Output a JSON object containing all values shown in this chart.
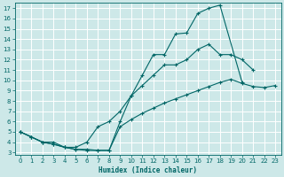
{
  "xlabel": "Humidex (Indice chaleur)",
  "xlim": [
    -0.5,
    23.5
  ],
  "ylim": [
    2.8,
    17.5
  ],
  "xticks": [
    0,
    1,
    2,
    3,
    4,
    5,
    6,
    7,
    8,
    9,
    10,
    11,
    12,
    13,
    14,
    15,
    16,
    17,
    18,
    19,
    20,
    21,
    22,
    23
  ],
  "yticks": [
    3,
    4,
    5,
    6,
    7,
    8,
    9,
    10,
    11,
    12,
    13,
    14,
    15,
    16,
    17
  ],
  "bg_color": "#cde8e8",
  "grid_color": "#ffffff",
  "line_color": "#006666",
  "line1_x": [
    0,
    1,
    2,
    3,
    4,
    5,
    6,
    7,
    8,
    9,
    10,
    11,
    12,
    13,
    14,
    15,
    16,
    17,
    18,
    20
  ],
  "line1_y": [
    5.0,
    4.5,
    4.0,
    4.0,
    3.5,
    3.3,
    3.3,
    3.2,
    3.2,
    6.0,
    8.5,
    10.5,
    12.5,
    12.5,
    14.5,
    14.6,
    16.5,
    17.0,
    17.3,
    9.8
  ],
  "line2_x": [
    0,
    1,
    2,
    3,
    4,
    5,
    6,
    7,
    8,
    9,
    10,
    11,
    12,
    13,
    14,
    15,
    16,
    17,
    18,
    19,
    20,
    21
  ],
  "line2_y": [
    5.0,
    4.5,
    4.0,
    3.8,
    3.5,
    3.5,
    4.0,
    5.5,
    6.0,
    7.0,
    8.5,
    9.5,
    10.5,
    11.5,
    11.5,
    12.0,
    13.0,
    13.5,
    12.5,
    12.5,
    12.0,
    11.0
  ],
  "line3_x": [
    0,
    1,
    2,
    3,
    4,
    5,
    6,
    7,
    8,
    9,
    10,
    11,
    12,
    13,
    14,
    15,
    16,
    17,
    18,
    19,
    20,
    21,
    22,
    23
  ],
  "line3_y": [
    5.0,
    4.5,
    4.0,
    3.8,
    3.5,
    3.3,
    3.2,
    3.2,
    3.2,
    5.5,
    6.2,
    6.8,
    7.3,
    7.8,
    8.2,
    8.6,
    9.0,
    9.4,
    9.8,
    10.1,
    9.7,
    9.4,
    9.3,
    9.5
  ]
}
